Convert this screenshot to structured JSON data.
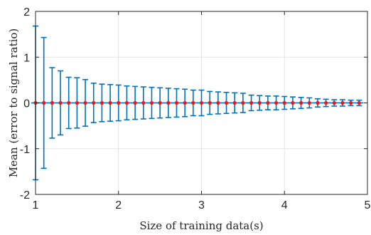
{
  "chart_data": {
    "type": "scatter",
    "title": "",
    "xlabel": "Size of training data(s)",
    "ylabel": "Mean (error to signal ratio)",
    "xlim": [
      1,
      5
    ],
    "ylim": [
      -2,
      2
    ],
    "x_ticks": [
      "1",
      "2",
      "3",
      "4",
      "5"
    ],
    "y_ticks": [
      "-2",
      "-1",
      "0",
      "1",
      "2"
    ],
    "grid": true,
    "error_bar_color": "#0072BD",
    "marker_color": "#E41A1C",
    "series": [
      {
        "x": [
          1.0,
          1.1,
          1.2,
          1.3,
          1.4,
          1.5,
          1.6,
          1.7,
          1.8,
          1.9,
          2.0,
          2.1,
          2.2,
          2.3,
          2.4,
          2.5,
          2.6,
          2.7,
          2.8,
          2.9,
          3.0,
          3.1,
          3.2,
          3.3,
          3.4,
          3.5,
          3.6,
          3.7,
          3.8,
          3.9,
          4.0,
          4.1,
          4.2,
          4.3,
          4.4,
          4.5,
          4.6,
          4.7,
          4.8,
          4.9
        ],
        "y": [
          0,
          0,
          0,
          0,
          0,
          0,
          0,
          0,
          0,
          0,
          0,
          0,
          0,
          0,
          0,
          0,
          0,
          0,
          0,
          0,
          0,
          0,
          0,
          0,
          0,
          0,
          0,
          0,
          0,
          0,
          0,
          0,
          0,
          0,
          0,
          0,
          0,
          0,
          0,
          0
        ],
        "error": [
          1.68,
          1.43,
          0.77,
          0.7,
          0.56,
          0.55,
          0.51,
          0.43,
          0.41,
          0.4,
          0.39,
          0.37,
          0.36,
          0.35,
          0.34,
          0.33,
          0.32,
          0.31,
          0.3,
          0.28,
          0.28,
          0.25,
          0.24,
          0.23,
          0.22,
          0.21,
          0.17,
          0.16,
          0.15,
          0.15,
          0.14,
          0.13,
          0.12,
          0.11,
          0.09,
          0.08,
          0.07,
          0.07,
          0.06,
          0.06
        ]
      }
    ]
  }
}
